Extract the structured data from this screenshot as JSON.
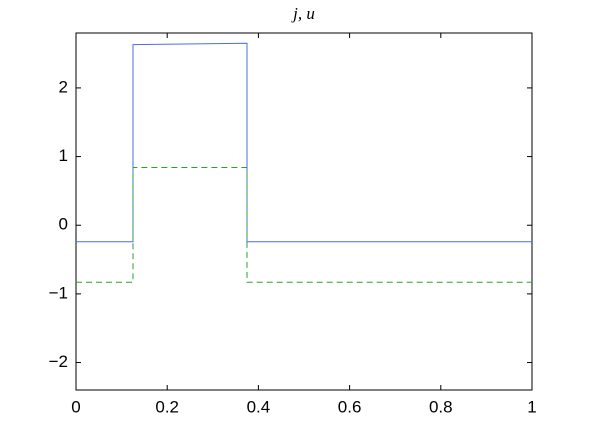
{
  "chart_data": {
    "type": "line",
    "title": "j, u",
    "x": [
      0,
      0.125,
      0.125,
      0.375,
      0.375,
      1
    ],
    "series": [
      {
        "color": "#4a6fe3",
        "dash": "solid",
        "values": [
          -0.24,
          -0.24,
          2.63,
          2.65,
          -0.24,
          -0.24
        ]
      },
      {
        "color": "#2ca02c",
        "dash": "dashed",
        "values": [
          -0.83,
          -0.83,
          0.84,
          0.84,
          -0.83,
          -0.83
        ]
      }
    ],
    "xlim": [
      0,
      1
    ],
    "ylim": [
      -2.4,
      2.8
    ],
    "xticks": [
      0,
      0.2,
      0.4,
      0.6,
      0.8,
      1
    ],
    "yticks": [
      {
        "value": -2,
        "label": "−2"
      },
      {
        "value": -1,
        "label": "−1"
      },
      0,
      1,
      2
    ],
    "grid": false
  }
}
